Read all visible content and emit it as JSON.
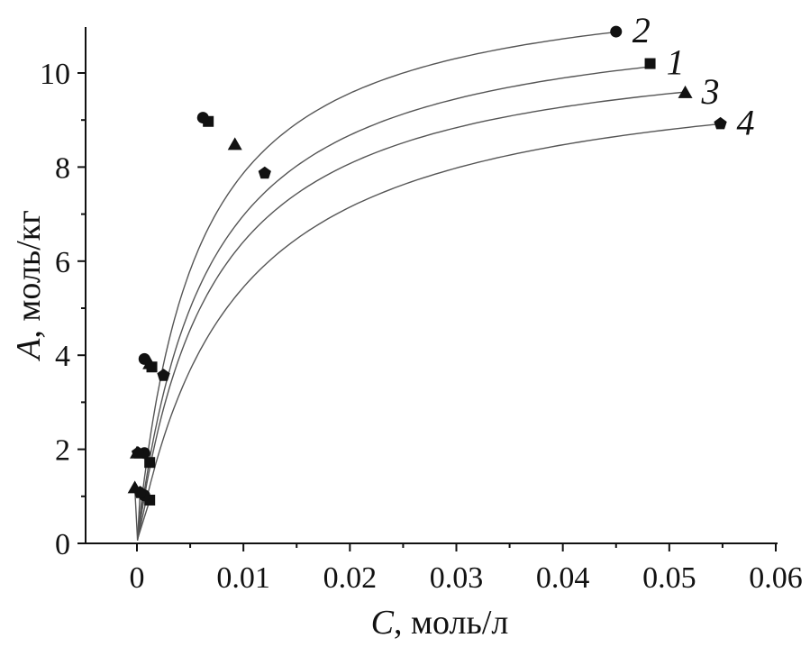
{
  "chart_data": {
    "type": "scatter",
    "xlabel_var": "C",
    "xlabel_unit": ", моль/л",
    "ylabel_var": "A",
    "ylabel_unit": ", моль/кг",
    "xlim": [
      -0.005,
      0.06
    ],
    "ylim": [
      0,
      11
    ],
    "x_ticks": [
      {
        "value": 0,
        "label": "0"
      },
      {
        "value": 0.01,
        "label": "0.01"
      },
      {
        "value": 0.02,
        "label": "0.02"
      },
      {
        "value": 0.03,
        "label": "0.03"
      },
      {
        "value": 0.04,
        "label": "0.04"
      },
      {
        "value": 0.05,
        "label": "0.05"
      },
      {
        "value": 0.06,
        "label": "0.06"
      }
    ],
    "y_ticks": [
      {
        "value": 0,
        "label": "0"
      },
      {
        "value": 2,
        "label": "2"
      },
      {
        "value": 4,
        "label": "4"
      },
      {
        "value": 6,
        "label": "6"
      },
      {
        "value": 8,
        "label": "8"
      },
      {
        "value": 10,
        "label": "10"
      }
    ],
    "grid": false,
    "series": [
      {
        "name": "1",
        "marker": "square",
        "points": [
          [
            0.0012,
            0.92
          ],
          [
            0.0012,
            1.72
          ],
          [
            0.0014,
            3.75
          ],
          [
            0.0067,
            8.97
          ],
          [
            0.0482,
            10.2
          ]
        ],
        "fit": {
          "a_max": 11.5,
          "k": 0.0065
        }
      },
      {
        "name": "2",
        "marker": "circle",
        "points": [
          [
            0.0007,
            1.02
          ],
          [
            0.0007,
            1.92
          ],
          [
            0.0007,
            3.92
          ],
          [
            0.0062,
            9.05
          ],
          [
            0.045,
            10.88
          ]
        ],
        "fit": {
          "a_max": 12.2,
          "k": 0.0055
        }
      },
      {
        "name": "3",
        "marker": "triangle",
        "points": [
          [
            -0.0002,
            1.18
          ],
          [
            0.0,
            1.92
          ],
          [
            0.0012,
            3.82
          ],
          [
            0.0092,
            8.48
          ],
          [
            0.0515,
            9.58
          ]
        ],
        "fit": {
          "a_max": 10.9,
          "k": 0.007
        }
      },
      {
        "name": "4",
        "marker": "pentagon",
        "points": [
          [
            0.0003,
            1.08
          ],
          [
            0.0001,
            1.92
          ],
          [
            0.0025,
            3.57
          ],
          [
            0.012,
            7.87
          ],
          [
            0.0548,
            8.92
          ]
        ],
        "fit": {
          "a_max": 10.4,
          "k": 0.0091
        }
      }
    ]
  }
}
